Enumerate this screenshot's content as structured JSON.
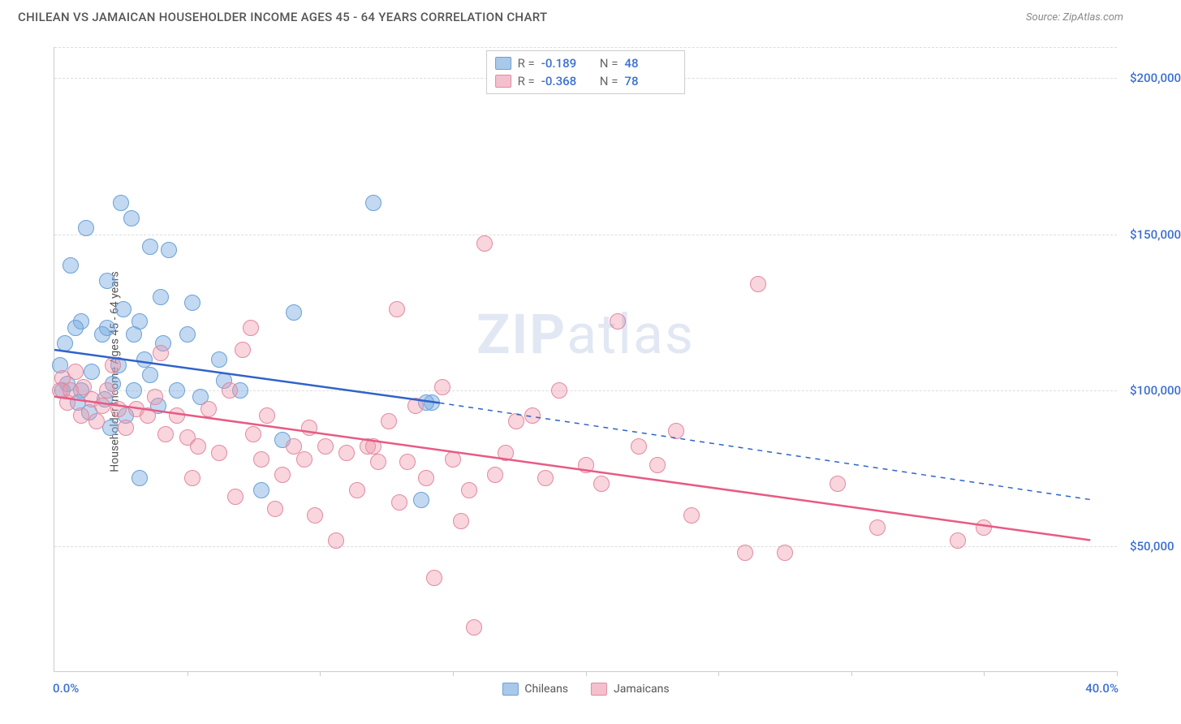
{
  "header": {
    "title": "CHILEAN VS JAMAICAN HOUSEHOLDER INCOME AGES 45 - 64 YEARS CORRELATION CHART",
    "source": "Source: ZipAtlas.com"
  },
  "watermark": {
    "bold": "ZIP",
    "rest": "atlas"
  },
  "chart": {
    "type": "scatter",
    "ylabel": "Householder Income Ages 45 - 64 years",
    "xlim": [
      0,
      40
    ],
    "ylim": [
      10000,
      210000
    ],
    "x_label_min": "0.0%",
    "x_label_max": "40.0%",
    "x_tick_step": 5,
    "y_ticks": [
      50000,
      100000,
      150000,
      200000
    ],
    "y_tick_labels": [
      "$50,000",
      "$100,000",
      "$150,000",
      "$200,000"
    ],
    "grid_color": "#dddddd",
    "axis_color": "#cccccc",
    "background_color": "#ffffff",
    "value_color": "#3b6fd4",
    "label_color": "#555555",
    "marker_radius": 10,
    "series": [
      {
        "name": "Chileans",
        "fill": "rgba(120,170,225,0.45)",
        "stroke": "#6aa0d8",
        "swatch_fill": "#a9c9ea",
        "swatch_border": "#6aa0d8",
        "r_value": "-0.189",
        "n_value": "48",
        "trend": {
          "color": "#2f63c9",
          "width": 2.5,
          "solid_from_x": 0,
          "solid_from_y": 113000,
          "solid_to_x": 14.5,
          "solid_to_y": 96000,
          "dash_to_x": 39,
          "dash_to_y": 65000
        },
        "points": [
          [
            1.2,
            152000
          ],
          [
            2.5,
            160000
          ],
          [
            2.9,
            155000
          ],
          [
            0.6,
            140000
          ],
          [
            3.6,
            146000
          ],
          [
            4.3,
            145000
          ],
          [
            2.0,
            135000
          ],
          [
            4.0,
            130000
          ],
          [
            5.2,
            128000
          ],
          [
            1.0,
            122000
          ],
          [
            2.0,
            120000
          ],
          [
            3.2,
            122000
          ],
          [
            0.4,
            115000
          ],
          [
            0.8,
            120000
          ],
          [
            1.8,
            118000
          ],
          [
            3.0,
            118000
          ],
          [
            4.1,
            115000
          ],
          [
            5.0,
            118000
          ],
          [
            6.2,
            110000
          ],
          [
            0.2,
            108000
          ],
          [
            1.4,
            106000
          ],
          [
            2.4,
            108000
          ],
          [
            3.6,
            105000
          ],
          [
            1.0,
            100000
          ],
          [
            2.2,
            102000
          ],
          [
            5.5,
            98000
          ],
          [
            7.0,
            100000
          ],
          [
            12.0,
            160000
          ],
          [
            9.0,
            125000
          ],
          [
            14.2,
            96000
          ],
          [
            3.2,
            72000
          ],
          [
            7.8,
            68000
          ],
          [
            8.6,
            84000
          ],
          [
            13.8,
            65000
          ],
          [
            1.9,
            97000
          ],
          [
            0.5,
            102000
          ],
          [
            0.9,
            96000
          ],
          [
            2.7,
            92000
          ],
          [
            3.9,
            95000
          ],
          [
            2.1,
            88000
          ],
          [
            1.3,
            93000
          ],
          [
            4.6,
            100000
          ],
          [
            0.3,
            100000
          ],
          [
            6.4,
            103000
          ],
          [
            3.4,
            110000
          ],
          [
            2.6,
            126000
          ],
          [
            3.0,
            100000
          ],
          [
            14.0,
            96000
          ]
        ]
      },
      {
        "name": "Jamaicans",
        "fill": "rgba(240,150,170,0.40)",
        "stroke": "#e28aa0",
        "swatch_fill": "#f4c0cd",
        "swatch_border": "#e28aa0",
        "r_value": "-0.368",
        "n_value": "78",
        "trend": {
          "color": "#e85a84",
          "width": 2.5,
          "solid_from_x": 0,
          "solid_from_y": 98000,
          "solid_to_x": 39,
          "solid_to_y": 52000,
          "dash_to_x": 39,
          "dash_to_y": 52000
        },
        "points": [
          [
            0.3,
            104000
          ],
          [
            0.8,
            106000
          ],
          [
            1.1,
            101000
          ],
          [
            1.4,
            97000
          ],
          [
            1.8,
            95000
          ],
          [
            0.5,
            96000
          ],
          [
            1.0,
            92000
          ],
          [
            2.0,
            100000
          ],
          [
            2.4,
            94000
          ],
          [
            2.7,
            88000
          ],
          [
            3.1,
            94000
          ],
          [
            3.5,
            92000
          ],
          [
            4.0,
            112000
          ],
          [
            4.2,
            86000
          ],
          [
            4.6,
            92000
          ],
          [
            5.0,
            85000
          ],
          [
            5.4,
            82000
          ],
          [
            5.8,
            94000
          ],
          [
            6.2,
            80000
          ],
          [
            6.6,
            100000
          ],
          [
            7.1,
            113000
          ],
          [
            7.5,
            86000
          ],
          [
            7.8,
            78000
          ],
          [
            8.3,
            62000
          ],
          [
            8.6,
            73000
          ],
          [
            9.0,
            82000
          ],
          [
            9.4,
            78000
          ],
          [
            9.8,
            60000
          ],
          [
            10.2,
            82000
          ],
          [
            10.6,
            52000
          ],
          [
            11.0,
            80000
          ],
          [
            11.4,
            68000
          ],
          [
            11.8,
            82000
          ],
          [
            12.2,
            77000
          ],
          [
            12.6,
            90000
          ],
          [
            12.9,
            126000
          ],
          [
            13.3,
            77000
          ],
          [
            13.6,
            95000
          ],
          [
            14.0,
            72000
          ],
          [
            14.3,
            40000
          ],
          [
            14.6,
            101000
          ],
          [
            15.0,
            78000
          ],
          [
            15.3,
            58000
          ],
          [
            15.6,
            68000
          ],
          [
            16.2,
            147000
          ],
          [
            16.6,
            73000
          ],
          [
            17.0,
            80000
          ],
          [
            17.4,
            90000
          ],
          [
            18.0,
            92000
          ],
          [
            18.5,
            72000
          ],
          [
            19.0,
            100000
          ],
          [
            15.8,
            24000
          ],
          [
            20.0,
            76000
          ],
          [
            20.6,
            70000
          ],
          [
            21.2,
            122000
          ],
          [
            22.0,
            82000
          ],
          [
            22.7,
            76000
          ],
          [
            23.4,
            87000
          ],
          [
            24.0,
            60000
          ],
          [
            26.5,
            134000
          ],
          [
            26.0,
            48000
          ],
          [
            27.5,
            48000
          ],
          [
            29.5,
            70000
          ],
          [
            31.0,
            56000
          ],
          [
            34.0,
            52000
          ],
          [
            35.0,
            56000
          ],
          [
            2.2,
            108000
          ],
          [
            3.8,
            98000
          ],
          [
            5.2,
            72000
          ],
          [
            6.8,
            66000
          ],
          [
            8.0,
            92000
          ],
          [
            9.6,
            88000
          ],
          [
            1.6,
            90000
          ],
          [
            0.2,
            100000
          ],
          [
            0.6,
            100000
          ],
          [
            12.0,
            82000
          ],
          [
            13.0,
            64000
          ],
          [
            7.4,
            120000
          ]
        ]
      }
    ],
    "legend_bottom": [
      {
        "label": "Chileans",
        "series": 0
      },
      {
        "label": "Jamaicans",
        "series": 1
      }
    ]
  }
}
